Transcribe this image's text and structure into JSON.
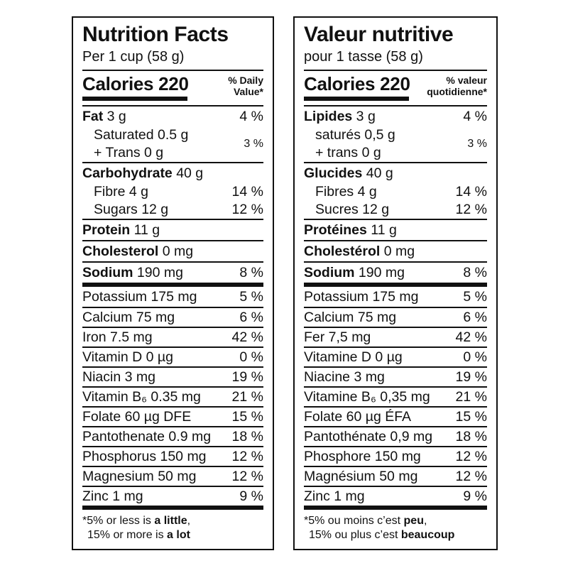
{
  "colors": {
    "ink": "#111111",
    "background": "#ffffff"
  },
  "panels": [
    {
      "lang": "en",
      "title": "Nutrition Facts",
      "serving": "Per 1 cup (58 g)",
      "calories": "Calories 220",
      "dv1": "% Daily",
      "dv2": "Value*",
      "fat": {
        "name": "Fat",
        "rest": " 3 g",
        "pct": "4 %",
        "sub1": "Saturated 0.5 g",
        "sub2": "+ Trans 0 g",
        "sub_pct": "3 %"
      },
      "carb": {
        "name": "Carbohydrate",
        "rest": " 40 g",
        "sub1": {
          "text": "Fibre 4 g",
          "pct": "14 %"
        },
        "sub2": {
          "text": "Sugars 12 g",
          "pct": "12 %"
        }
      },
      "protein": {
        "name": "Protein",
        "rest": " 11 g"
      },
      "cholesterol": {
        "name": "Cholesterol",
        "rest": " 0 mg"
      },
      "sodium": {
        "name": "Sodium",
        "rest": " 190 mg",
        "pct": "8 %"
      },
      "micros": [
        {
          "text": "Potassium 175 mg",
          "pct": "5 %"
        },
        {
          "text": "Calcium 75 mg",
          "pct": "6 %"
        },
        {
          "text": "Iron 7.5 mg",
          "pct": "42 %"
        },
        {
          "text": "Vitamin D 0 µg",
          "pct": "0 %"
        },
        {
          "text": "Niacin 3 mg",
          "pct": "19 %"
        },
        {
          "text": "Vitamin B₆ 0.35 mg",
          "pct": "21 %"
        },
        {
          "text": "Folate 60 µg DFE",
          "pct": "15 %"
        },
        {
          "text": "Pantothenate 0.9 mg",
          "pct": "18 %"
        },
        {
          "text": "Phosphorus 150 mg",
          "pct": "12 %"
        },
        {
          "text": "Magnesium 50 mg",
          "pct": "12 %"
        },
        {
          "text": "Zinc 1 mg",
          "pct": "9 %"
        }
      ],
      "foot": {
        "l1pre": "*5% or less is ",
        "l1bold": "a little",
        "l1post": ",",
        "l2pre": "15% or more is ",
        "l2bold": "a lot"
      }
    },
    {
      "lang": "fr",
      "title": "Valeur nutritive",
      "serving": "pour 1 tasse (58 g)",
      "calories": "Calories 220",
      "dv1": "% valeur",
      "dv2": "quotidienne*",
      "fat": {
        "name": "Lipides",
        "rest": " 3 g",
        "pct": "4 %",
        "sub1": "saturés 0,5 g",
        "sub2": "+ trans 0 g",
        "sub_pct": "3 %"
      },
      "carb": {
        "name": "Glucides",
        "rest": " 40 g",
        "sub1": {
          "text": "Fibres 4 g",
          "pct": "14 %"
        },
        "sub2": {
          "text": "Sucres 12 g",
          "pct": "12 %"
        }
      },
      "protein": {
        "name": "Protéines",
        "rest": " 11 g"
      },
      "cholesterol": {
        "name": "Cholestérol",
        "rest": " 0 mg"
      },
      "sodium": {
        "name": "Sodium",
        "rest": " 190 mg",
        "pct": "8 %"
      },
      "micros": [
        {
          "text": "Potassium 175 mg",
          "pct": "5 %"
        },
        {
          "text": "Calcium 75 mg",
          "pct": "6 %"
        },
        {
          "text": "Fer 7,5 mg",
          "pct": "42 %"
        },
        {
          "text": "Vitamine D 0 µg",
          "pct": "0 %"
        },
        {
          "text": "Niacine 3 mg",
          "pct": "19 %"
        },
        {
          "text": "Vitamine B₆ 0,35 mg",
          "pct": "21 %"
        },
        {
          "text": "Folate 60 µg ÉFA",
          "pct": "15 %"
        },
        {
          "text": "Pantothénate 0,9 mg",
          "pct": "18 %"
        },
        {
          "text": "Phosphore 150 mg",
          "pct": "12 %"
        },
        {
          "text": "Magnésium 50 mg",
          "pct": "12 %"
        },
        {
          "text": "Zinc 1 mg",
          "pct": "9 %"
        }
      ],
      "foot": {
        "l1pre": "*5% ou moins c’est ",
        "l1bold": "peu",
        "l1post": ",",
        "l2pre": "15% ou plus c’est ",
        "l2bold": "beaucoup"
      }
    }
  ]
}
